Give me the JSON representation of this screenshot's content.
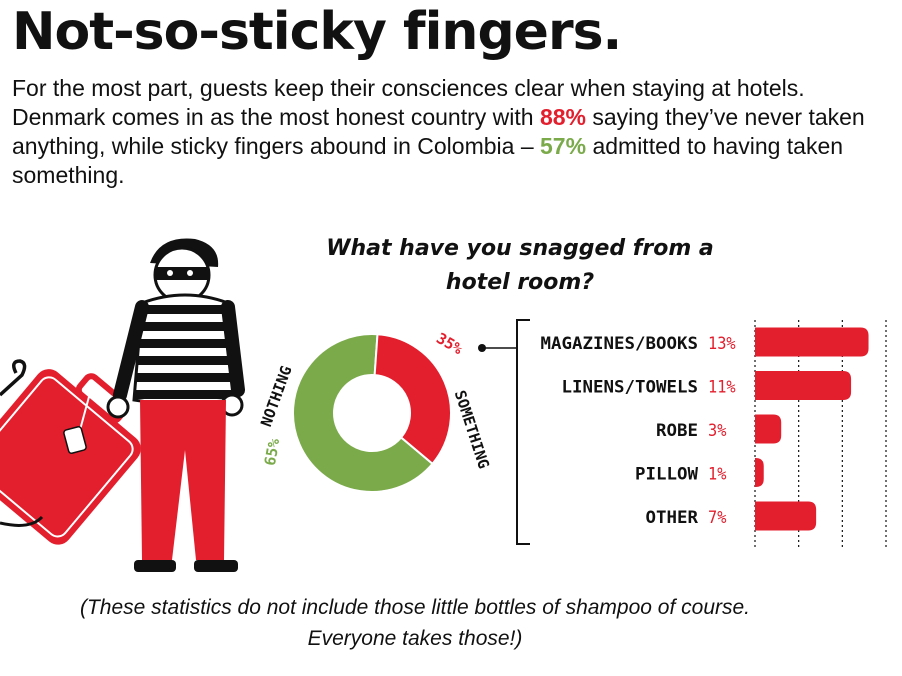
{
  "title": "Not-so-sticky fingers.",
  "intro": {
    "part1": "For the most part, guests keep their consciences clear when staying at hotels. Denmark comes in as the most honest country with ",
    "denmark_pct": "88%",
    "part2": " saying they’ve never taken anything, while sticky fingers abound in Colombia – ",
    "colombia_pct": "57%",
    "part3": " admitted to having taken something."
  },
  "question": "What have you snagged from a hotel room?",
  "footnote": "(These statistics do not include those little bottles of shampoo of course. Everyone takes those!)",
  "colors": {
    "red": "#e31e2d",
    "green": "#7aaa4a",
    "black": "#111111"
  },
  "icons": [
    "burglar-icon",
    "suitcase-icon",
    "coat-hanger-icon"
  ],
  "chart_data": [
    {
      "type": "pie",
      "variant": "donut",
      "slices": [
        {
          "label": "NOTHING",
          "value": 65,
          "pct_label": "65%",
          "color": "#7aaa4a"
        },
        {
          "label": "SOMETHING",
          "value": 35,
          "pct_label": "35%",
          "color": "#e31e2d"
        }
      ]
    },
    {
      "type": "bar",
      "orientation": "horizontal",
      "title": "What have you snagged from a hotel room?",
      "categories": [
        "MAGAZINES/BOOKS",
        "LINENS/TOWELS",
        "ROBE",
        "PILLOW",
        "OTHER"
      ],
      "values": [
        13,
        11,
        3,
        1,
        7
      ],
      "value_labels": [
        "13%",
        "11%",
        "3%",
        "1%",
        "7%"
      ],
      "xlim": [
        0,
        15
      ],
      "gridlines": [
        0,
        5,
        10,
        15
      ],
      "grid": true,
      "color": "#e31e2d"
    }
  ]
}
